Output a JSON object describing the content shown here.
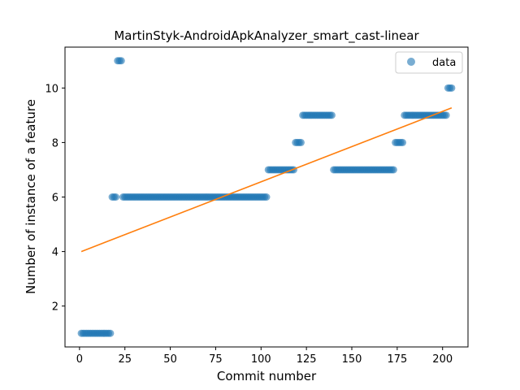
{
  "chart_data": {
    "type": "scatter",
    "title": "MartinStyk-AndroidApkAnalyzer_smart_cast-linear",
    "xlabel": "Commit number",
    "ylabel": "Number of instance of a feature",
    "xlim": [
      -8,
      214
    ],
    "ylim": [
      0.5,
      11.5
    ],
    "xticks": [
      0,
      25,
      50,
      75,
      100,
      125,
      150,
      175,
      200
    ],
    "yticks": [
      2,
      4,
      6,
      8,
      10
    ],
    "legend": {
      "position": "top-right",
      "entries": [
        "data"
      ]
    },
    "colors": {
      "data": "#1f77b4",
      "fit": "#ff7f0e"
    },
    "segments": [
      {
        "x_start": 1,
        "x_end": 17,
        "y": 1
      },
      {
        "x_start": 18,
        "x_end": 20,
        "y": 6
      },
      {
        "x_start": 21,
        "x_end": 23,
        "y": 11
      },
      {
        "x_start": 24,
        "x_end": 103,
        "y": 6
      },
      {
        "x_start": 104,
        "x_end": 118,
        "y": 7
      },
      {
        "x_start": 119,
        "x_end": 122,
        "y": 8
      },
      {
        "x_start": 123,
        "x_end": 139,
        "y": 9
      },
      {
        "x_start": 140,
        "x_end": 173,
        "y": 7
      },
      {
        "x_start": 174,
        "x_end": 178,
        "y": 8
      },
      {
        "x_start": 179,
        "x_end": 202,
        "y": 9
      },
      {
        "x_start": 203,
        "x_end": 205,
        "y": 10
      }
    ],
    "series": [
      {
        "name": "data",
        "kind": "scatter"
      },
      {
        "kind": "line",
        "x": [
          1,
          205
        ],
        "y": [
          4.0,
          9.27
        ]
      }
    ]
  }
}
